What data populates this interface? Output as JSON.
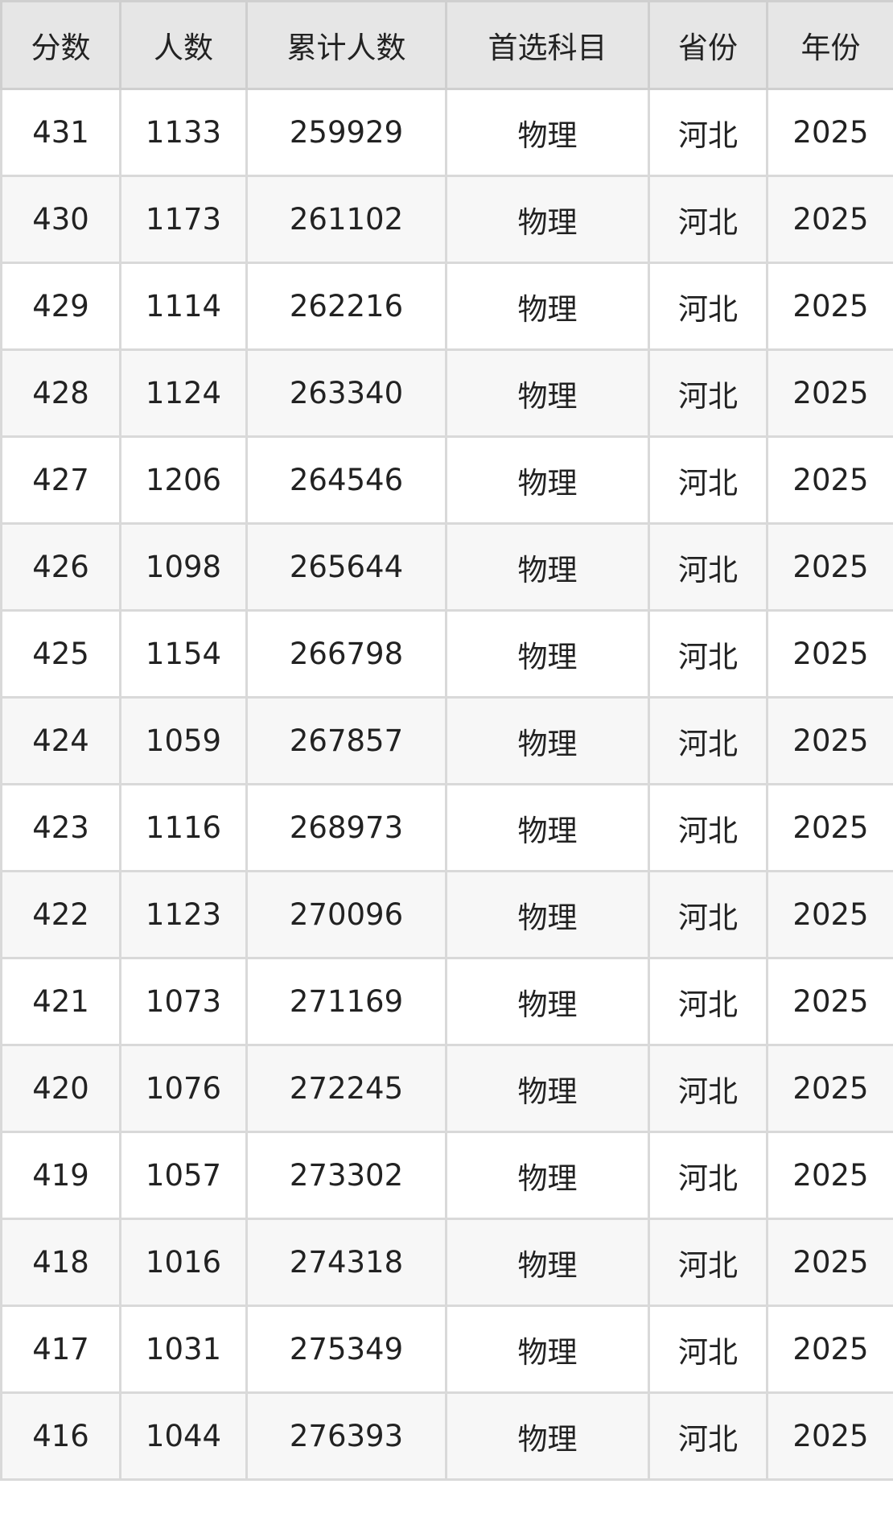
{
  "table": {
    "headers": [
      "分数",
      "人数",
      "累计人数",
      "首选科目",
      "省份",
      "年份"
    ],
    "rows": [
      [
        "431",
        "1133",
        "259929",
        "物理",
        "河北",
        "2025"
      ],
      [
        "430",
        "1173",
        "261102",
        "物理",
        "河北",
        "2025"
      ],
      [
        "429",
        "1114",
        "262216",
        "物理",
        "河北",
        "2025"
      ],
      [
        "428",
        "1124",
        "263340",
        "物理",
        "河北",
        "2025"
      ],
      [
        "427",
        "1206",
        "264546",
        "物理",
        "河北",
        "2025"
      ],
      [
        "426",
        "1098",
        "265644",
        "物理",
        "河北",
        "2025"
      ],
      [
        "425",
        "1154",
        "266798",
        "物理",
        "河北",
        "2025"
      ],
      [
        "424",
        "1059",
        "267857",
        "物理",
        "河北",
        "2025"
      ],
      [
        "423",
        "1116",
        "268973",
        "物理",
        "河北",
        "2025"
      ],
      [
        "422",
        "1123",
        "270096",
        "物理",
        "河北",
        "2025"
      ],
      [
        "421",
        "1073",
        "271169",
        "物理",
        "河北",
        "2025"
      ],
      [
        "420",
        "1076",
        "272245",
        "物理",
        "河北",
        "2025"
      ],
      [
        "419",
        "1057",
        "273302",
        "物理",
        "河北",
        "2025"
      ],
      [
        "418",
        "1016",
        "274318",
        "物理",
        "河北",
        "2025"
      ],
      [
        "417",
        "1031",
        "275349",
        "物理",
        "河北",
        "2025"
      ],
      [
        "416",
        "1044",
        "276393",
        "物理",
        "河北",
        "2025"
      ]
    ]
  },
  "colors": {
    "header_bg": "#e6e6e6",
    "alt_row_bg": "#f7f7f7",
    "border": "#d9d9d9",
    "text": "#222222"
  }
}
